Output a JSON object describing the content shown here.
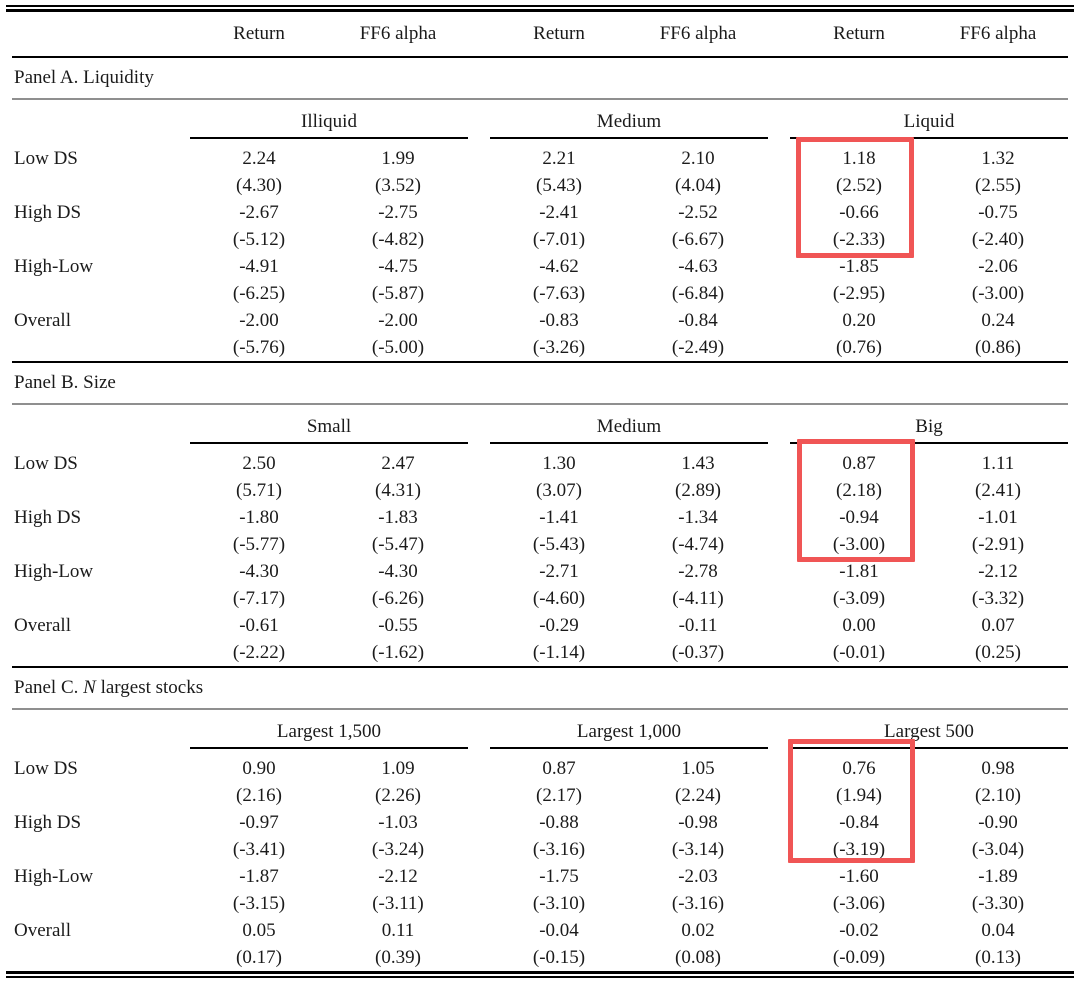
{
  "table": {
    "column_headers": [
      "Return",
      "FF6 alpha",
      "Return",
      "FF6 alpha",
      "Return",
      "FF6 alpha"
    ],
    "row_labels": [
      "Low DS",
      "High DS",
      "High-Low",
      "Overall"
    ],
    "panels": [
      {
        "title_pre": "Panel A. Liquidity",
        "title_italic": "",
        "title_post": "",
        "groups": [
          "Illiquid",
          "Medium",
          "Liquid"
        ],
        "rows": [
          {
            "label": "Low DS",
            "values": [
              "2.24",
              "1.99",
              "2.21",
              "2.10",
              "1.18",
              "1.32"
            ],
            "tstats": [
              "(4.30)",
              "(3.52)",
              "(5.43)",
              "(4.04)",
              "(2.52)",
              "(2.55)"
            ]
          },
          {
            "label": "High DS",
            "values": [
              "-2.67",
              "-2.75",
              "-2.41",
              "-2.52",
              "-0.66",
              "-0.75"
            ],
            "tstats": [
              "(-5.12)",
              "(-4.82)",
              "(-7.01)",
              "(-6.67)",
              "(-2.33)",
              "(-2.40)"
            ]
          },
          {
            "label": "High-Low",
            "values": [
              "-4.91",
              "-4.75",
              "-4.62",
              "-4.63",
              "-1.85",
              "-2.06"
            ],
            "tstats": [
              "(-6.25)",
              "(-5.87)",
              "(-7.63)",
              "(-6.84)",
              "(-2.95)",
              "(-3.00)"
            ]
          },
          {
            "label": "Overall",
            "values": [
              "-2.00",
              "-2.00",
              "-0.83",
              "-0.84",
              "0.20",
              "0.24"
            ],
            "tstats": [
              "(-5.76)",
              "(-5.00)",
              "(-3.26)",
              "(-2.49)",
              "(0.76)",
              "(0.86)"
            ]
          }
        ]
      },
      {
        "title_pre": "Panel B. Size",
        "title_italic": "",
        "title_post": "",
        "groups": [
          "Small",
          "Medium",
          "Big"
        ],
        "rows": [
          {
            "label": "Low DS",
            "values": [
              "2.50",
              "2.47",
              "1.30",
              "1.43",
              "0.87",
              "1.11"
            ],
            "tstats": [
              "(5.71)",
              "(4.31)",
              "(3.07)",
              "(2.89)",
              "(2.18)",
              "(2.41)"
            ]
          },
          {
            "label": "High DS",
            "values": [
              "-1.80",
              "-1.83",
              "-1.41",
              "-1.34",
              "-0.94",
              "-1.01"
            ],
            "tstats": [
              "(-5.77)",
              "(-5.47)",
              "(-5.43)",
              "(-4.74)",
              "(-3.00)",
              "(-2.91)"
            ]
          },
          {
            "label": "High-Low",
            "values": [
              "-4.30",
              "-4.30",
              "-2.71",
              "-2.78",
              "-1.81",
              "-2.12"
            ],
            "tstats": [
              "(-7.17)",
              "(-6.26)",
              "(-4.60)",
              "(-4.11)",
              "(-3.09)",
              "(-3.32)"
            ]
          },
          {
            "label": "Overall",
            "values": [
              "-0.61",
              "-0.55",
              "-0.29",
              "-0.11",
              "0.00",
              "0.07"
            ],
            "tstats": [
              "(-2.22)",
              "(-1.62)",
              "(-1.14)",
              "(-0.37)",
              "(-0.01)",
              "(0.25)"
            ]
          }
        ]
      },
      {
        "title_pre": "Panel C. ",
        "title_italic": "N",
        "title_post": " largest stocks",
        "groups": [
          "Largest 1,500",
          "Largest 1,000",
          "Largest 500"
        ],
        "rows": [
          {
            "label": "Low DS",
            "values": [
              "0.90",
              "1.09",
              "0.87",
              "1.05",
              "0.76",
              "0.98"
            ],
            "tstats": [
              "(2.16)",
              "(2.26)",
              "(2.17)",
              "(2.24)",
              "(1.94)",
              "(2.10)"
            ]
          },
          {
            "label": "High DS",
            "values": [
              "-0.97",
              "-1.03",
              "-0.88",
              "-0.98",
              "-0.84",
              "-0.90"
            ],
            "tstats": [
              "(-3.41)",
              "(-3.24)",
              "(-3.16)",
              "(-3.14)",
              "(-3.19)",
              "(-3.04)"
            ]
          },
          {
            "label": "High-Low",
            "values": [
              "-1.87",
              "-2.12",
              "-1.75",
              "-2.03",
              "-1.60",
              "-1.89"
            ],
            "tstats": [
              "(-3.15)",
              "(-3.11)",
              "(-3.10)",
              "(-3.16)",
              "(-3.06)",
              "(-3.30)"
            ]
          },
          {
            "label": "Overall",
            "values": [
              "0.05",
              "0.11",
              "-0.04",
              "0.02",
              "-0.02",
              "0.04"
            ],
            "tstats": [
              "(0.17)",
              "(0.39)",
              "(-0.15)",
              "(0.08)",
              "(-0.09)",
              "(0.13)"
            ]
          }
        ]
      }
    ],
    "highlight": {
      "color": "#f05555",
      "boxes": [
        {
          "panel": "Panel A. Liquidity",
          "group": "Liquid",
          "column": "Return",
          "rows_covered": [
            "Low DS",
            "High DS"
          ]
        },
        {
          "panel": "Panel B. Size",
          "group": "Big",
          "column": "Return",
          "rows_covered": [
            "Low DS",
            "High DS"
          ]
        },
        {
          "panel": "Panel C. N largest stocks",
          "group": "Largest 500",
          "column": "Return",
          "rows_covered": [
            "Low DS",
            "High DS"
          ]
        }
      ]
    }
  }
}
